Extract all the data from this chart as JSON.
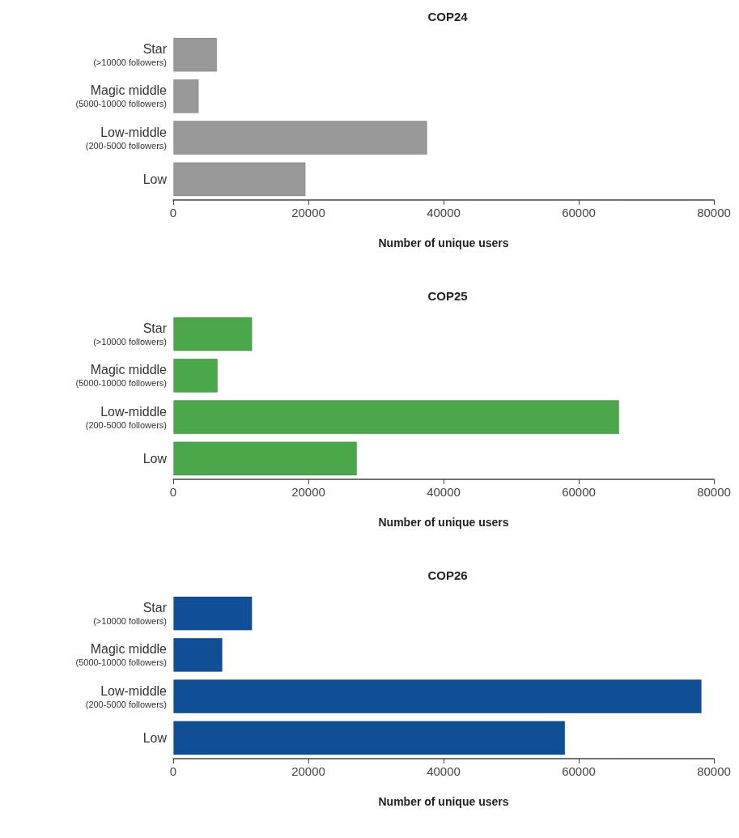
{
  "chart_data": [
    {
      "type": "bar",
      "orientation": "horizontal",
      "title": "COP24",
      "xlabel": "Number of unique users",
      "categories": [
        "Star\n(>10000 followers)",
        "Magic middle\n(5000-10000 followers)",
        "Low-middle\n(200-5000 followers)",
        "Low"
      ],
      "values": [
        6500,
        3800,
        37600,
        19600
      ],
      "color": "#999999",
      "xlim": [
        0,
        80000
      ],
      "xticks": [
        0,
        20000,
        40000,
        60000,
        80000
      ],
      "grid": false
    },
    {
      "type": "bar",
      "orientation": "horizontal",
      "title": "COP25",
      "xlabel": "Number of unique users",
      "categories": [
        "Star\n(>10000 followers)",
        "Magic middle\n(5000-10000 followers)",
        "Low-middle\n(200-5000 followers)",
        "Low"
      ],
      "values": [
        11700,
        6600,
        66000,
        27200
      ],
      "color": "#4aa74a",
      "xlim": [
        0,
        80000
      ],
      "xticks": [
        0,
        20000,
        40000,
        60000,
        80000
      ],
      "grid": false
    },
    {
      "type": "bar",
      "orientation": "horizontal",
      "title": "COP26",
      "xlabel": "Number of unique users",
      "categories": [
        "Star\n(>10000 followers)",
        "Magic middle\n(5000-10000 followers)",
        "Low-middle\n(200-5000 followers)",
        "Low"
      ],
      "values": [
        11700,
        7300,
        78200,
        58000
      ],
      "color": "#0f4f96",
      "xlim": [
        0,
        80000
      ],
      "xticks": [
        0,
        20000,
        40000,
        60000,
        80000
      ],
      "grid": false
    }
  ]
}
